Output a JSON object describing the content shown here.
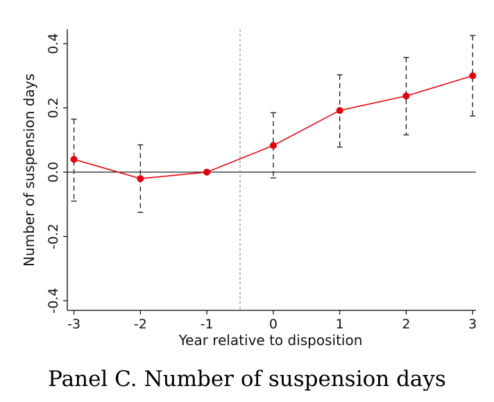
{
  "caption": "Panel C. Number of suspension days",
  "chart_data": {
    "type": "line",
    "xlabel": "Year relative to disposition",
    "ylabel": "Number of suspension days",
    "x": [
      -3,
      -2,
      -1,
      0,
      1,
      2,
      3
    ],
    "series": [
      {
        "values": [
          0.04,
          -0.02,
          0.0,
          0.083,
          0.192,
          0.237,
          0.3
        ],
        "ci_lower": [
          -0.09,
          -0.125,
          0.0,
          -0.018,
          0.078,
          0.116,
          0.175
        ],
        "ci_upper": [
          0.165,
          0.085,
          0.0,
          0.185,
          0.303,
          0.357,
          0.425
        ],
        "color": "#e8000b"
      }
    ],
    "xticks": [
      "-3",
      "-2",
      "-1",
      "0",
      "1",
      "2",
      "3"
    ],
    "yticks": [
      "-0.4",
      "-0.2",
      "0.0",
      "0.2",
      "0.4"
    ],
    "ytick_values": [
      -0.4,
      -0.2,
      0.0,
      0.2,
      0.4
    ],
    "xlim": [
      -3.1,
      3.05
    ],
    "ylim": [
      -0.43,
      0.445
    ],
    "reference_line_y": 0,
    "event_line_x": -0.5,
    "grid": false,
    "ci_style": "dashed"
  }
}
